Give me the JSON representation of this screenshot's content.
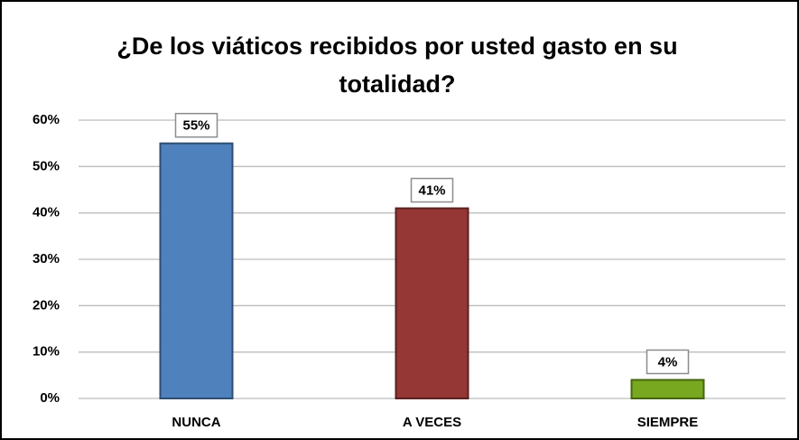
{
  "chart_data": {
    "type": "bar",
    "title": "¿De los viáticos recibidos por usted gasto en su totalidad?",
    "categories": [
      "NUNCA",
      "A VECES",
      "SIEMPRE"
    ],
    "values": [
      55,
      41,
      4
    ],
    "value_labels": [
      "55%",
      "41%",
      "4%"
    ],
    "colors": [
      "#4f81bd",
      "#953735",
      "#77a81f"
    ],
    "ylim": [
      0,
      60
    ],
    "yticks": [
      {
        "value": 0,
        "label": "0%"
      },
      {
        "value": 10,
        "label": "10%"
      },
      {
        "value": 20,
        "label": "20%"
      },
      {
        "value": 30,
        "label": "30%"
      },
      {
        "value": 40,
        "label": "40%"
      },
      {
        "value": 50,
        "label": "50%"
      },
      {
        "value": 60,
        "label": "60%"
      }
    ],
    "grid": true
  }
}
